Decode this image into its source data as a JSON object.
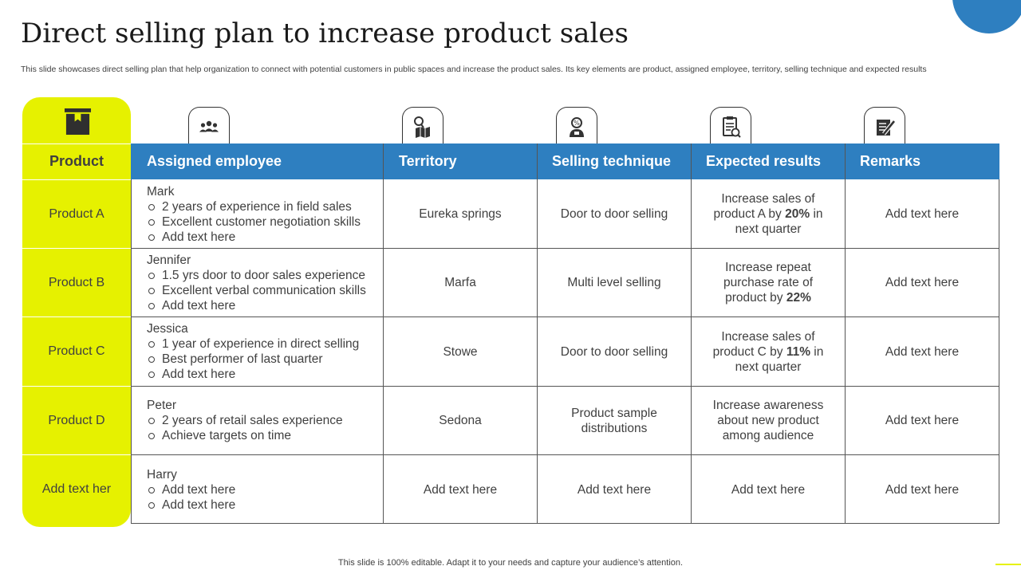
{
  "slide": {
    "title": "Direct selling plan to increase product sales",
    "subtitle": "This slide showcases direct selling plan that help organization to connect with potential customers in public spaces and increase the product sales. Its key elements are product, assigned employee, territory, selling technique and expected results",
    "footer": "This slide is 100% editable. Adapt it to your needs and capture your audience’s attention.",
    "colors": {
      "accent_blue": "#2e7fc0",
      "accent_yellow": "#e6f100",
      "text": "#404040"
    }
  },
  "table": {
    "product_header": "Product",
    "columns": [
      {
        "label": "Assigned employee",
        "icon": "team-icon"
      },
      {
        "label": "Territory",
        "icon": "map-search-icon"
      },
      {
        "label": "Selling technique",
        "icon": "sales-person-icon"
      },
      {
        "label": "Expected results",
        "icon": "report-check-icon"
      },
      {
        "label": "Remarks",
        "icon": "notes-pen-icon"
      }
    ],
    "product_icon": "box-icon",
    "rows": [
      {
        "product": "Product A",
        "employee": {
          "name": "Mark",
          "points": [
            "2 years of experience in field sales",
            "Excellent customer negotiation skills",
            "Add text here"
          ]
        },
        "territory": "Eureka springs",
        "technique": "Door to door selling",
        "result_pre": "Increase sales of product A  by ",
        "result_bold": "20%",
        "result_post": " in next quarter",
        "remarks": "Add text here"
      },
      {
        "product": "Product B",
        "employee": {
          "name": "Jennifer",
          "points": [
            "1.5 yrs door to door sales experience",
            "Excellent verbal communication skills",
            "Add text here"
          ]
        },
        "territory": "Marfa",
        "technique": "Multi level selling",
        "result_pre": "Increase repeat purchase rate of product by ",
        "result_bold": "22%",
        "result_post": "",
        "remarks": "Add text here"
      },
      {
        "product": "Product C",
        "employee": {
          "name": "Jessica",
          "points": [
            "1 year of experience in direct selling",
            "Best performer of last quarter",
            "Add text here"
          ]
        },
        "territory": "Stowe",
        "technique": "Door to door selling",
        "result_pre": "Increase sales of product C by ",
        "result_bold": "11%",
        "result_post": " in next quarter",
        "remarks": "Add text here"
      },
      {
        "product": "Product D",
        "employee": {
          "name": "Peter",
          "points": [
            "2 years of retail sales experience",
            "Achieve targets on time"
          ]
        },
        "territory": "Sedona",
        "technique": "Product sample distributions",
        "result_pre": "Increase awareness about new product among audience",
        "result_bold": "",
        "result_post": "",
        "remarks": "Add text here"
      },
      {
        "product": "Add text her",
        "employee": {
          "name": "Harry",
          "points": [
            "Add text here",
            "Add text here"
          ]
        },
        "territory": "Add text here",
        "technique": "Add text here",
        "result_pre": "Add text here",
        "result_bold": "",
        "result_post": "",
        "remarks": "Add text here"
      }
    ]
  }
}
